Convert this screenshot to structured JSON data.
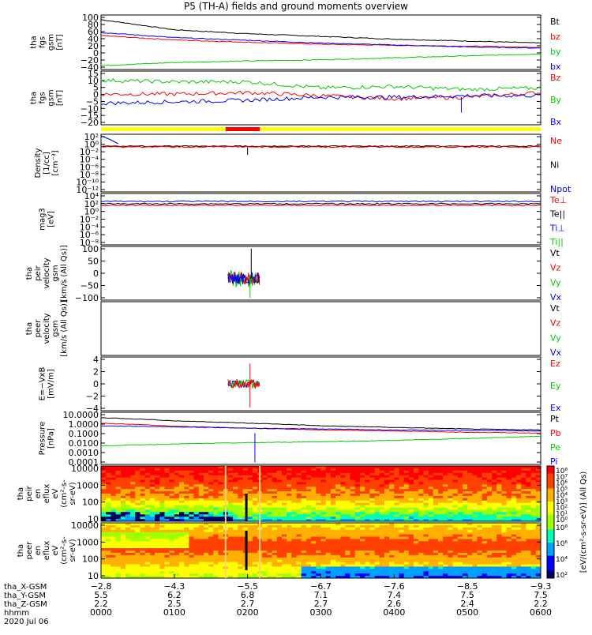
{
  "title": "P5 (TH-A) fields and ground moments overview",
  "colors": {
    "black": "#000000",
    "red": "#ff0000",
    "green": "#00cc00",
    "blue": "#0000ff",
    "yellow": "#ffff00",
    "barRed": "#ff0000"
  },
  "chart_data": [
    {
      "type": "line",
      "id": "fgs_mag",
      "ylabel": [
        "tha",
        "fgs",
        "gsm",
        "[nT]"
      ],
      "yticks": [
        "100",
        "80",
        "60",
        "40",
        "20",
        "0",
        "−20",
        "−40"
      ],
      "ylim": [
        -40,
        100
      ],
      "legend": [
        {
          "name": "Bt",
          "color": "#000000"
        },
        {
          "name": "bz",
          "color": "#ff0000"
        },
        {
          "name": "by",
          "color": "#00cc00"
        },
        {
          "name": "bx",
          "color": "#0000ff"
        }
      ],
      "x": [
        0,
        60,
        120,
        180,
        240,
        300,
        360
      ],
      "series": [
        {
          "name": "Bt",
          "values": [
            88,
            62,
            52,
            45,
            38,
            33,
            28
          ]
        },
        {
          "name": "bz",
          "values": [
            47,
            36,
            30,
            25,
            22,
            20,
            17
          ]
        },
        {
          "name": "by",
          "values": [
            -30,
            -22,
            -18,
            -15,
            -10,
            -5,
            0
          ]
        },
        {
          "name": "bx",
          "values": [
            55,
            42,
            35,
            28,
            23,
            18,
            15
          ]
        }
      ]
    },
    {
      "type": "line",
      "id": "fgs_dsl",
      "ylabel": [
        "tha",
        "fgs",
        "gsm",
        "[nT]"
      ],
      "yticks": [
        "15",
        "10",
        "5",
        "0",
        "−5",
        "−10",
        "−15",
        "−20"
      ],
      "ylim": [
        -20,
        15
      ],
      "legend": [
        {
          "name": "Bz",
          "color": "#ff0000"
        },
        {
          "name": "By",
          "color": "#00cc00"
        },
        {
          "name": "Bx",
          "color": "#0000ff"
        }
      ],
      "x": [
        0,
        60,
        120,
        180,
        240,
        300,
        360
      ],
      "series": [
        {
          "name": "Bz",
          "values": [
            0,
            0,
            1,
            -1,
            -3,
            -2,
            1
          ]
        },
        {
          "name": "By",
          "values": [
            9,
            8,
            8,
            4,
            5,
            3,
            4
          ]
        },
        {
          "name": "Bx",
          "values": [
            -6,
            -5,
            -4,
            -2,
            -2,
            -1,
            -1
          ]
        }
      ]
    },
    {
      "type": "line",
      "id": "density",
      "ylabel": [
        "Density",
        "[1/cc]",
        "[cm⁻³]"
      ],
      "yticks": [
        "10²",
        "10⁰",
        "10⁻²",
        "10⁻⁴",
        "10⁻⁶",
        "10⁻⁸",
        "10⁻¹⁰",
        "10⁻¹²"
      ],
      "legend": [
        {
          "name": "Ne",
          "color": "#ff0000"
        },
        {
          "name": "Ni",
          "color": "#000000"
        },
        {
          "name": "Npot",
          "color": "#0000ff"
        }
      ]
    },
    {
      "type": "line",
      "id": "temperature",
      "ylabel": [
        "mag3",
        "[eV]"
      ],
      "yticks": [
        "10⁴",
        "10²",
        "10⁰",
        "10⁻²",
        "10⁻⁴",
        "10⁻⁶",
        "10⁻⁸"
      ],
      "legend": [
        {
          "name": "Te⊥",
          "color": "#ff0000"
        },
        {
          "name": "Te||",
          "color": "#000000"
        },
        {
          "name": "Ti⊥",
          "color": "#0000ff"
        },
        {
          "name": "Ti||",
          "color": "#00cc00"
        }
      ]
    },
    {
      "type": "line",
      "id": "peir_velocity",
      "ylabel": [
        "tha",
        "peir",
        "velocity",
        "gsm",
        "[km/s (All Qs)]"
      ],
      "yticks": [
        "100",
        "50",
        "0",
        "−50",
        "−100"
      ],
      "ylim": [
        -100,
        150
      ],
      "legend": [
        {
          "name": "Vt",
          "color": "#000000"
        },
        {
          "name": "Vz",
          "color": "#ff0000"
        },
        {
          "name": "Vy",
          "color": "#00cc00"
        },
        {
          "name": "Vx",
          "color": "#0000ff"
        }
      ]
    },
    {
      "type": "line",
      "id": "peer_velocity",
      "ylabel": [
        "tha",
        "peer",
        "velocity",
        "gsm",
        "[km/s (All Qs)]"
      ],
      "yticks": [],
      "legend": [
        {
          "name": "Vt",
          "color": "#000000"
        },
        {
          "name": "Vz",
          "color": "#ff0000"
        },
        {
          "name": "Vy",
          "color": "#00cc00"
        },
        {
          "name": "Vx",
          "color": "#0000ff"
        }
      ]
    },
    {
      "type": "line",
      "id": "efield",
      "ylabel": [
        "E=−VxB",
        "[mV/m]"
      ],
      "yticks": [
        "4",
        "2",
        "0",
        "−2",
        "−4"
      ],
      "ylim": [
        -4,
        4
      ],
      "legend": [
        {
          "name": "Ez",
          "color": "#ff0000"
        },
        {
          "name": "Ey",
          "color": "#00cc00"
        },
        {
          "name": "Ex",
          "color": "#0000ff"
        }
      ]
    },
    {
      "type": "line",
      "id": "pressure",
      "ylabel": [
        "Pressure",
        "[nPa]"
      ],
      "yticks": [
        "10.0000",
        "1.0000",
        "0.1000",
        "0.0100",
        "0.0010",
        "0.0001"
      ],
      "legend": [
        {
          "name": "Pt",
          "color": "#000000"
        },
        {
          "name": "Pb",
          "color": "#ff0000"
        },
        {
          "name": "Pe",
          "color": "#00cc00"
        },
        {
          "name": "Pi",
          "color": "#0000ff"
        }
      ],
      "x": [
        0,
        60,
        120,
        180,
        240,
        300,
        360
      ],
      "series": [
        {
          "name": "Pt",
          "values": [
            3.0,
            1.5,
            0.9,
            0.5,
            0.35,
            0.25,
            0.2
          ]
        },
        {
          "name": "Pb",
          "values": [
            0.9,
            0.45,
            0.3,
            0.2,
            0.16,
            0.12,
            0.1
          ]
        },
        {
          "name": "Pe",
          "values": [
            0.006,
            0.009,
            0.012,
            0.015,
            0.02,
            0.03,
            0.05
          ]
        },
        {
          "name": "Pi",
          "values": [
            0.5,
            0.4,
            0.3,
            0.25,
            0.2,
            0.18,
            0.16
          ]
        }
      ]
    },
    {
      "type": "heatmap",
      "id": "peir_spec",
      "ylabel": [
        "tha",
        "peir",
        "en",
        "eflux",
        "eV",
        "(cm²-s-",
        "sr-eV)"
      ],
      "yticks": [
        "10000",
        "1000",
        "100",
        "10"
      ],
      "colorbar": [
        "10⁸",
        "10⁷",
        "10⁶",
        "10⁵",
        "10⁴",
        "10³",
        "10²",
        "10¹",
        "10⁰"
      ]
    },
    {
      "type": "heatmap",
      "id": "peer_spec",
      "ylabel": [
        "tha",
        "peer",
        "en",
        "eflux",
        "eV",
        "(cm²-s-",
        "sr-eV)"
      ],
      "yticks": [
        "10000",
        "1000",
        "100",
        "10"
      ],
      "colorbar": [
        "10⁸",
        "10⁶",
        "10⁴",
        "10²"
      ]
    }
  ],
  "colorbar_label": "[eV/(cm²-s-sr-eV)] (All Qs)",
  "xaxis": {
    "row_labels": [
      "tha_X-GSM",
      "tha_Y-GSM",
      "tha_Z-GSM",
      "hhmm",
      "2020 Jul 06"
    ],
    "ticks": [
      {
        "x_gsm": "−2.8",
        "y_gsm": "5.5",
        "z_gsm": "2.2",
        "hhmm": "0000"
      },
      {
        "x_gsm": "−4.3",
        "y_gsm": "6.2",
        "z_gsm": "2.5",
        "hhmm": "0100"
      },
      {
        "x_gsm": "−5.5",
        "y_gsm": "6.8",
        "z_gsm": "2.7",
        "hhmm": "0200"
      },
      {
        "x_gsm": "−6.7",
        "y_gsm": "7.1",
        "z_gsm": "2.7",
        "hhmm": "0300"
      },
      {
        "x_gsm": "−7.6",
        "y_gsm": "7.4",
        "z_gsm": "2.6",
        "hhmm": "0400"
      },
      {
        "x_gsm": "−8.5",
        "y_gsm": "7.5",
        "z_gsm": "2.4",
        "hhmm": "0500"
      },
      {
        "x_gsm": "−9.3",
        "y_gsm": "7.5",
        "z_gsm": "2.2",
        "hhmm": "0600"
      }
    ]
  }
}
